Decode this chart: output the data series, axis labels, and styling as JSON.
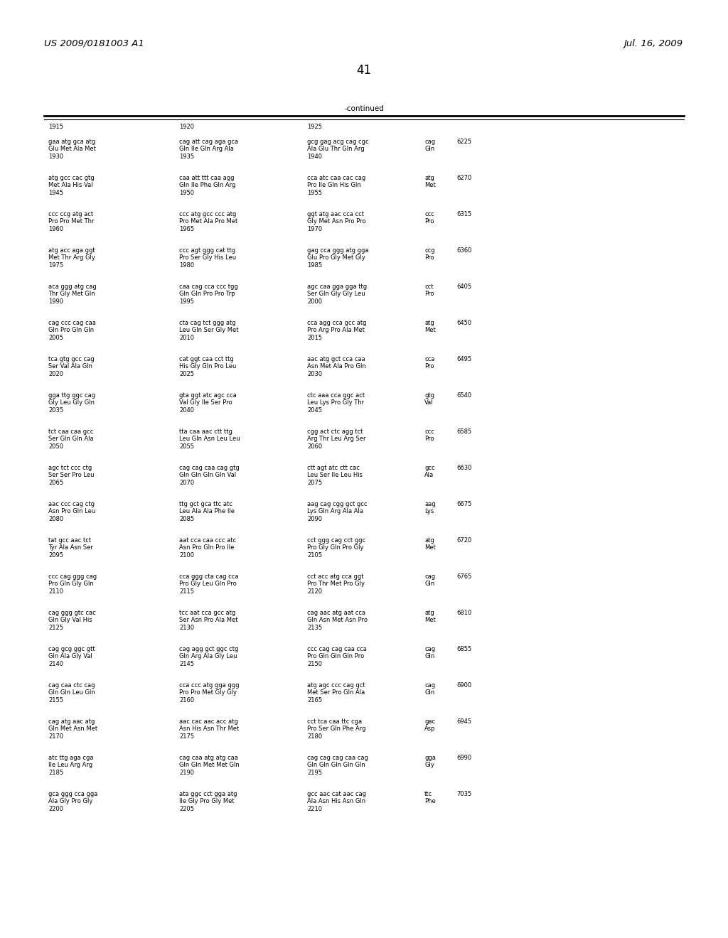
{
  "header_left": "US 2009/0181003 A1",
  "header_right": "Jul. 16, 2009",
  "page_number": "41",
  "continued_label": "-continued",
  "col_headers": [
    "1915",
    "1920",
    "1925"
  ],
  "background_color": "#ffffff",
  "text_color": "#000000",
  "font_size": 6.0,
  "header_font_size": 9.5,
  "page_num_font_size": 12,
  "rows": [
    {
      "dna1": "gaa atg gca atg",
      "dna2": "cag att cag aga gca",
      "dna3": "gcg gag acg cag cgc",
      "dna4": "cag",
      "num": "6225",
      "aa1": "Glu Met Ala Met",
      "aa2": "Gln Ile Gln Arg Ala",
      "aa3": "Ala Glu Thr Gln Arg",
      "aa4": "Gln",
      "pos1": "1930",
      "pos2": "1935",
      "pos3": "1940"
    },
    {
      "dna1": "atg gcc cac gtg",
      "dna2": "caa att ttt caa agg",
      "dna3": "cca atc caa cac cag",
      "dna4": "atg",
      "num": "6270",
      "aa1": "Met Ala His Val",
      "aa2": "Gln Ile Phe Gln Arg",
      "aa3": "Pro Ile Gln His Gln",
      "aa4": "Met",
      "pos1": "1945",
      "pos2": "1950",
      "pos3": "1955"
    },
    {
      "dna1": "ccc ccg atg act",
      "dna2": "ccc atg gcc ccc atg",
      "dna3": "ggt atg aac cca cct",
      "dna4": "ccc",
      "num": "6315",
      "aa1": "Pro Pro Met Thr",
      "aa2": "Pro Met Ala Pro Met",
      "aa3": "Gly Met Asn Pro Pro",
      "aa4": "Pro",
      "pos1": "1960",
      "pos2": "1965",
      "pos3": "1970"
    },
    {
      "dna1": "atg acc aga ggt",
      "dna2": "ccc agt ggg cat ttg",
      "dna3": "gag cca ggg atg gga",
      "dna4": "ccg",
      "num": "6360",
      "aa1": "Met Thr Arg Gly",
      "aa2": "Pro Ser Gly His Leu",
      "aa3": "Glu Pro Gly Met Gly",
      "aa4": "Pro",
      "pos1": "1975",
      "pos2": "1980",
      "pos3": "1985"
    },
    {
      "dna1": "aca ggg atg cag",
      "dna2": "caa cag cca ccc tgg",
      "dna3": "agc caa gga gga ttg",
      "dna4": "cct",
      "num": "6405",
      "aa1": "Thr Gly Met Gln",
      "aa2": "Gln Gln Pro Pro Trp",
      "aa3": "Ser Gln Gly Gly Leu",
      "aa4": "Pro",
      "pos1": "1990",
      "pos2": "1995",
      "pos3": "2000"
    },
    {
      "dna1": "cag ccc cag caa",
      "dna2": "cta cag tct ggg atg",
      "dna3": "cca agg cca gcc atg",
      "dna4": "atg",
      "num": "6450",
      "aa1": "Gln Pro Gln Gln",
      "aa2": "Leu Gln Ser Gly Met",
      "aa3": "Pro Arg Pro Ala Met",
      "aa4": "Met",
      "pos1": "2005",
      "pos2": "2010",
      "pos3": "2015"
    },
    {
      "dna1": "tca gtg gcc cag",
      "dna2": "cat ggt caa cct ttg",
      "dna3": "aac atg gct cca caa",
      "dna4": "cca",
      "num": "6495",
      "aa1": "Ser Val Ala Gln",
      "aa2": "His Gly Gln Pro Leu",
      "aa3": "Asn Met Ala Pro Gln",
      "aa4": "Pro",
      "pos1": "2020",
      "pos2": "2025",
      "pos3": "2030"
    },
    {
      "dna1": "gga ttg ggc cag",
      "dna2": "gta ggt atc agc cca",
      "dna3": "ctc aaa cca ggc act",
      "dna4": "gtg",
      "num": "6540",
      "aa1": "Gly Leu Gly Gln",
      "aa2": "Val Gly Ile Ser Pro",
      "aa3": "Leu Lys Pro Gly Thr",
      "aa4": "Val",
      "pos1": "2035",
      "pos2": "2040",
      "pos3": "2045"
    },
    {
      "dna1": "tct caa caa gcc",
      "dna2": "tta caa aac ctt ttg",
      "dna3": "cgg act ctc agg tct",
      "dna4": "ccc",
      "num": "6585",
      "aa1": "Ser Gln Gln Ala",
      "aa2": "Leu Gln Asn Leu Leu",
      "aa3": "Arg Thr Leu Arg Ser",
      "aa4": "Pro",
      "pos1": "2050",
      "pos2": "2055",
      "pos3": "2060"
    },
    {
      "dna1": "agc tct ccc ctg",
      "dna2": "cag cag caa cag gtg",
      "dna3": "ctt agt atc ctt cac",
      "dna4": "gcc",
      "num": "6630",
      "aa1": "Ser Ser Pro Leu",
      "aa2": "Gln Gln Gln Gln Val",
      "aa3": "Leu Ser Ile Leu His",
      "aa4": "Ala",
      "pos1": "2065",
      "pos2": "2070",
      "pos3": "2075"
    },
    {
      "dna1": "aac ccc cag ctg",
      "dna2": "ttg gct gca ttc atc",
      "dna3": "aag cag cgg gct gcc",
      "dna4": "aag",
      "num": "6675",
      "aa1": "Asn Pro Gln Leu",
      "aa2": "Leu Ala Ala Phe Ile",
      "aa3": "Lys Gln Arg Ala Ala",
      "aa4": "Lys",
      "pos1": "2080",
      "pos2": "2085",
      "pos3": "2090"
    },
    {
      "dna1": "tat gcc aac tct",
      "dna2": "aat cca caa ccc atc",
      "dna3": "cct ggg cag cct ggc",
      "dna4": "atg",
      "num": "6720",
      "aa1": "Tyr Ala Asn Ser",
      "aa2": "Asn Pro Gln Pro Ile",
      "aa3": "Pro Gly Gln Pro Gly",
      "aa4": "Met",
      "pos1": "2095",
      "pos2": "2100",
      "pos3": "2105"
    },
    {
      "dna1": "ccc cag ggg cag",
      "dna2": "cca ggg cta cag cca",
      "dna3": "cct acc atg cca ggt",
      "dna4": "cag",
      "num": "6765",
      "aa1": "Pro Gln Gly Gln",
      "aa2": "Pro Gly Leu Gln Pro",
      "aa3": "Pro Thr Met Pro Gly",
      "aa4": "Gln",
      "pos1": "2110",
      "pos2": "2115",
      "pos3": "2120"
    },
    {
      "dna1": "cag ggg gtc cac",
      "dna2": "tcc aat cca gcc atg",
      "dna3": "cag aac atg aat cca",
      "dna4": "atg",
      "num": "6810",
      "aa1": "Gln Gly Val His",
      "aa2": "Ser Asn Pro Ala Met",
      "aa3": "Gln Asn Met Asn Pro",
      "aa4": "Met",
      "pos1": "2125",
      "pos2": "2130",
      "pos3": "2135"
    },
    {
      "dna1": "cag gcg ggc gtt",
      "dna2": "cag agg gct ggc ctg",
      "dna3": "ccc cag cag caa cca",
      "dna4": "cag",
      "num": "6855",
      "aa1": "Gln Ala Gly Val",
      "aa2": "Gln Arg Ala Gly Leu",
      "aa3": "Pro Gln Gln Gln Pro",
      "aa4": "Gln",
      "pos1": "2140",
      "pos2": "2145",
      "pos3": "2150"
    },
    {
      "dna1": "cag caa ctc cag",
      "dna2": "cca ccc atg gga ggg",
      "dna3": "atg agc ccc cag gct",
      "dna4": "cag",
      "num": "6900",
      "aa1": "Gln Gln Leu Gln",
      "aa2": "Pro Pro Met Gly Gly",
      "aa3": "Met Ser Pro Gln Ala",
      "aa4": "Gln",
      "pos1": "2155",
      "pos2": "2160",
      "pos3": "2165"
    },
    {
      "dna1": "cag atg aac atg",
      "dna2": "aac cac aac acc atg",
      "dna3": "cct tca caa ttc cga",
      "dna4": "gac",
      "num": "6945",
      "aa1": "Gln Met Asn Met",
      "aa2": "Asn His Asn Thr Met",
      "aa3": "Pro Ser Gln Phe Arg",
      "aa4": "Asp",
      "pos1": "2170",
      "pos2": "2175",
      "pos3": "2180"
    },
    {
      "dna1": "atc ttg aga cga",
      "dna2": "cag caa atg atg caa",
      "dna3": "cag cag cag caa cag",
      "dna4": "gga",
      "num": "6990",
      "aa1": "Ile Leu Arg Arg",
      "aa2": "Gln Gln Met Met Gln",
      "aa3": "Gln Gln Gln Gln Gln",
      "aa4": "Gly",
      "pos1": "2185",
      "pos2": "2190",
      "pos3": "2195"
    },
    {
      "dna1": "gca ggg cca gga",
      "dna2": "ata ggc cct gga atg",
      "dna3": "gcc aac cat aac cag",
      "dna4": "ttc",
      "num": "7035",
      "aa1": "Ala Gly Pro Gly",
      "aa2": "Ile Gly Pro Gly Met",
      "aa3": "Ala Asn His Asn Gln",
      "aa4": "Phe",
      "pos1": "2200",
      "pos2": "2205",
      "pos3": "2210"
    }
  ]
}
